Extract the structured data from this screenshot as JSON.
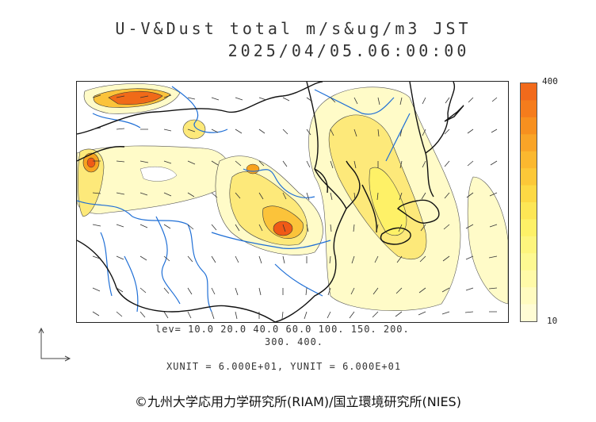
{
  "header": {
    "title": "U-V&Dust total m/s&ug/m3 JST",
    "datetime": "2025/04/05.06:00:00"
  },
  "colorbar": {
    "max_label": "400",
    "min_label": "10",
    "colors": [
      "#f26a1b",
      "#f57c1c",
      "#f7901f",
      "#f9a427",
      "#fbb82f",
      "#fcc838",
      "#fdd944",
      "#fde655",
      "#fef167",
      "#fef57d",
      "#fef992",
      "#fffaa8",
      "#fffbc0",
      "#fffcd4"
    ]
  },
  "levels": {
    "line1": "lev= 10.0 20.0 40.0 60.0 100. 150. 200.",
    "line2": "300. 400."
  },
  "units": {
    "text": "XUNIT = 6.000E+01, YUNIT = 6.000E+01"
  },
  "credit": {
    "text": "©九州大学応用力学研究所(RIAM)/国立環境研究所(NIES)"
  },
  "map_colors": {
    "dust_light": "#fffbc8",
    "dust_mid": "#fde97a",
    "dust_high": "#f7a21e",
    "dust_peak": "#f05a16",
    "river": "#1f6fd6",
    "coast": "#111111",
    "border": "#111111"
  }
}
